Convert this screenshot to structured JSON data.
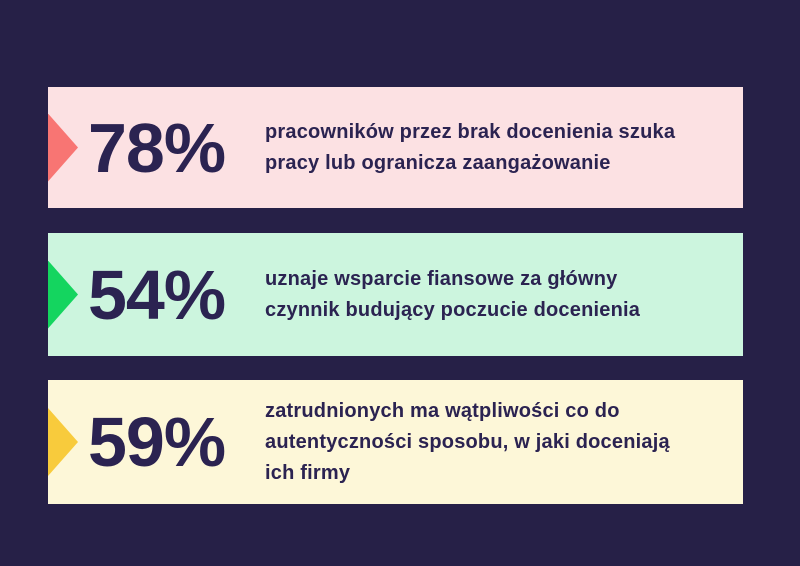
{
  "page": {
    "background_color": "#262047",
    "text_color": "#2b2351"
  },
  "stats": [
    {
      "percent": "78%",
      "description_lines": [
        "pracowników przez brak docenienia szuka",
        "pracy lub ogranicza zaangażowanie"
      ],
      "bar_color": "#fce1e3",
      "arrow_color": "#f87573",
      "arrow_icon": "triangle-right"
    },
    {
      "percent": "54%",
      "description_lines": [
        "uznaje wsparcie fiansowe za główny",
        "czynnik budujący poczucie docenienia"
      ],
      "bar_color": "#ccf5de",
      "arrow_color": "#14d55f",
      "arrow_icon": "triangle-right"
    },
    {
      "percent": "59%",
      "description_lines": [
        "zatrudnionych ma wątpliwości co do",
        "autentyczności sposobu, w jaki doceniają",
        "ich firmy"
      ],
      "bar_color": "#fdf7d8",
      "arrow_color": "#f8cb3c",
      "arrow_icon": "triangle-right"
    }
  ],
  "chart_data": {
    "type": "bar",
    "orientation": "horizontal",
    "categories": [
      "pracowników przez brak docenienia szuka pracy lub ogranicza zaangażowanie",
      "uznaje wsparcie fiansowe za główny czynnik budujący poczucie docenienia",
      "zatrudnionych ma wątpliwości co do autentyczności sposobu, w jaki doceniają ich firmy"
    ],
    "values": [
      78,
      54,
      59
    ],
    "unit": "%",
    "title": "",
    "xlabel": "",
    "ylabel": "",
    "legend": false,
    "grid": false,
    "bar_colors": [
      "#fce1e3",
      "#ccf5de",
      "#fdf7d8"
    ],
    "marker_colors": [
      "#f87573",
      "#14d55f",
      "#f8cb3c"
    ]
  }
}
